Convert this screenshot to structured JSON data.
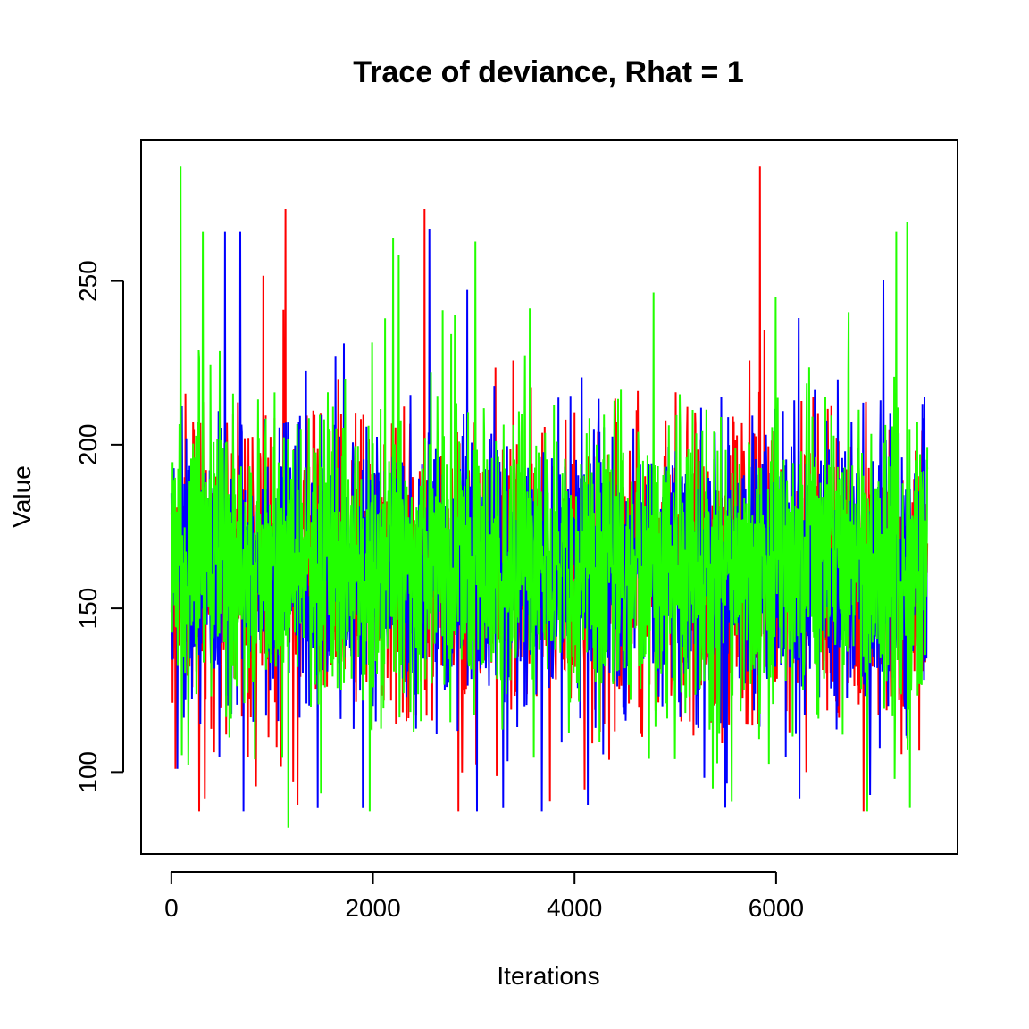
{
  "chart_data": {
    "type": "line",
    "title": "Trace of deviance, Rhat = 1",
    "xlabel": "Iterations",
    "ylabel": "Value",
    "xlim": [
      -300,
      7800
    ],
    "ylim": [
      75,
      293
    ],
    "xticks": [
      0,
      2000,
      4000,
      6000
    ],
    "xtick_labels": [
      "0",
      "2000",
      "4000",
      "6000"
    ],
    "yticks": [
      100,
      150,
      200,
      250
    ],
    "ytick_labels": [
      "100",
      "150",
      "200",
      "250"
    ],
    "grid": false,
    "legend": "none",
    "n_iterations": 7500,
    "summary": {
      "center": 163,
      "typical_band": [
        125,
        215
      ],
      "min_observed": 83,
      "max_observed": 285
    },
    "series": [
      {
        "color": "#ff0000",
        "spikes": [
          [
            40,
            101
          ],
          [
            330,
            92
          ],
          [
            1130,
            272
          ],
          [
            1250,
            90
          ],
          [
            2510,
            272
          ],
          [
            5840,
            285
          ],
          [
            6300,
            100
          ]
        ]
      },
      {
        "color": "#0000ff",
        "spikes": [
          [
            60,
            101
          ],
          [
            530,
            265
          ],
          [
            1450,
            89
          ],
          [
            1900,
            89
          ],
          [
            2560,
            266
          ],
          [
            3290,
            89
          ],
          [
            4130,
            90
          ],
          [
            6230,
            92
          ],
          [
            6930,
            93
          ]
        ]
      },
      {
        "color": "#22ff00",
        "spikes": [
          [
            90,
            285
          ],
          [
            310,
            265
          ],
          [
            1160,
            83
          ],
          [
            2200,
            263
          ],
          [
            5370,
            95
          ],
          [
            7190,
            265
          ],
          [
            7300,
            268
          ]
        ]
      }
    ]
  }
}
